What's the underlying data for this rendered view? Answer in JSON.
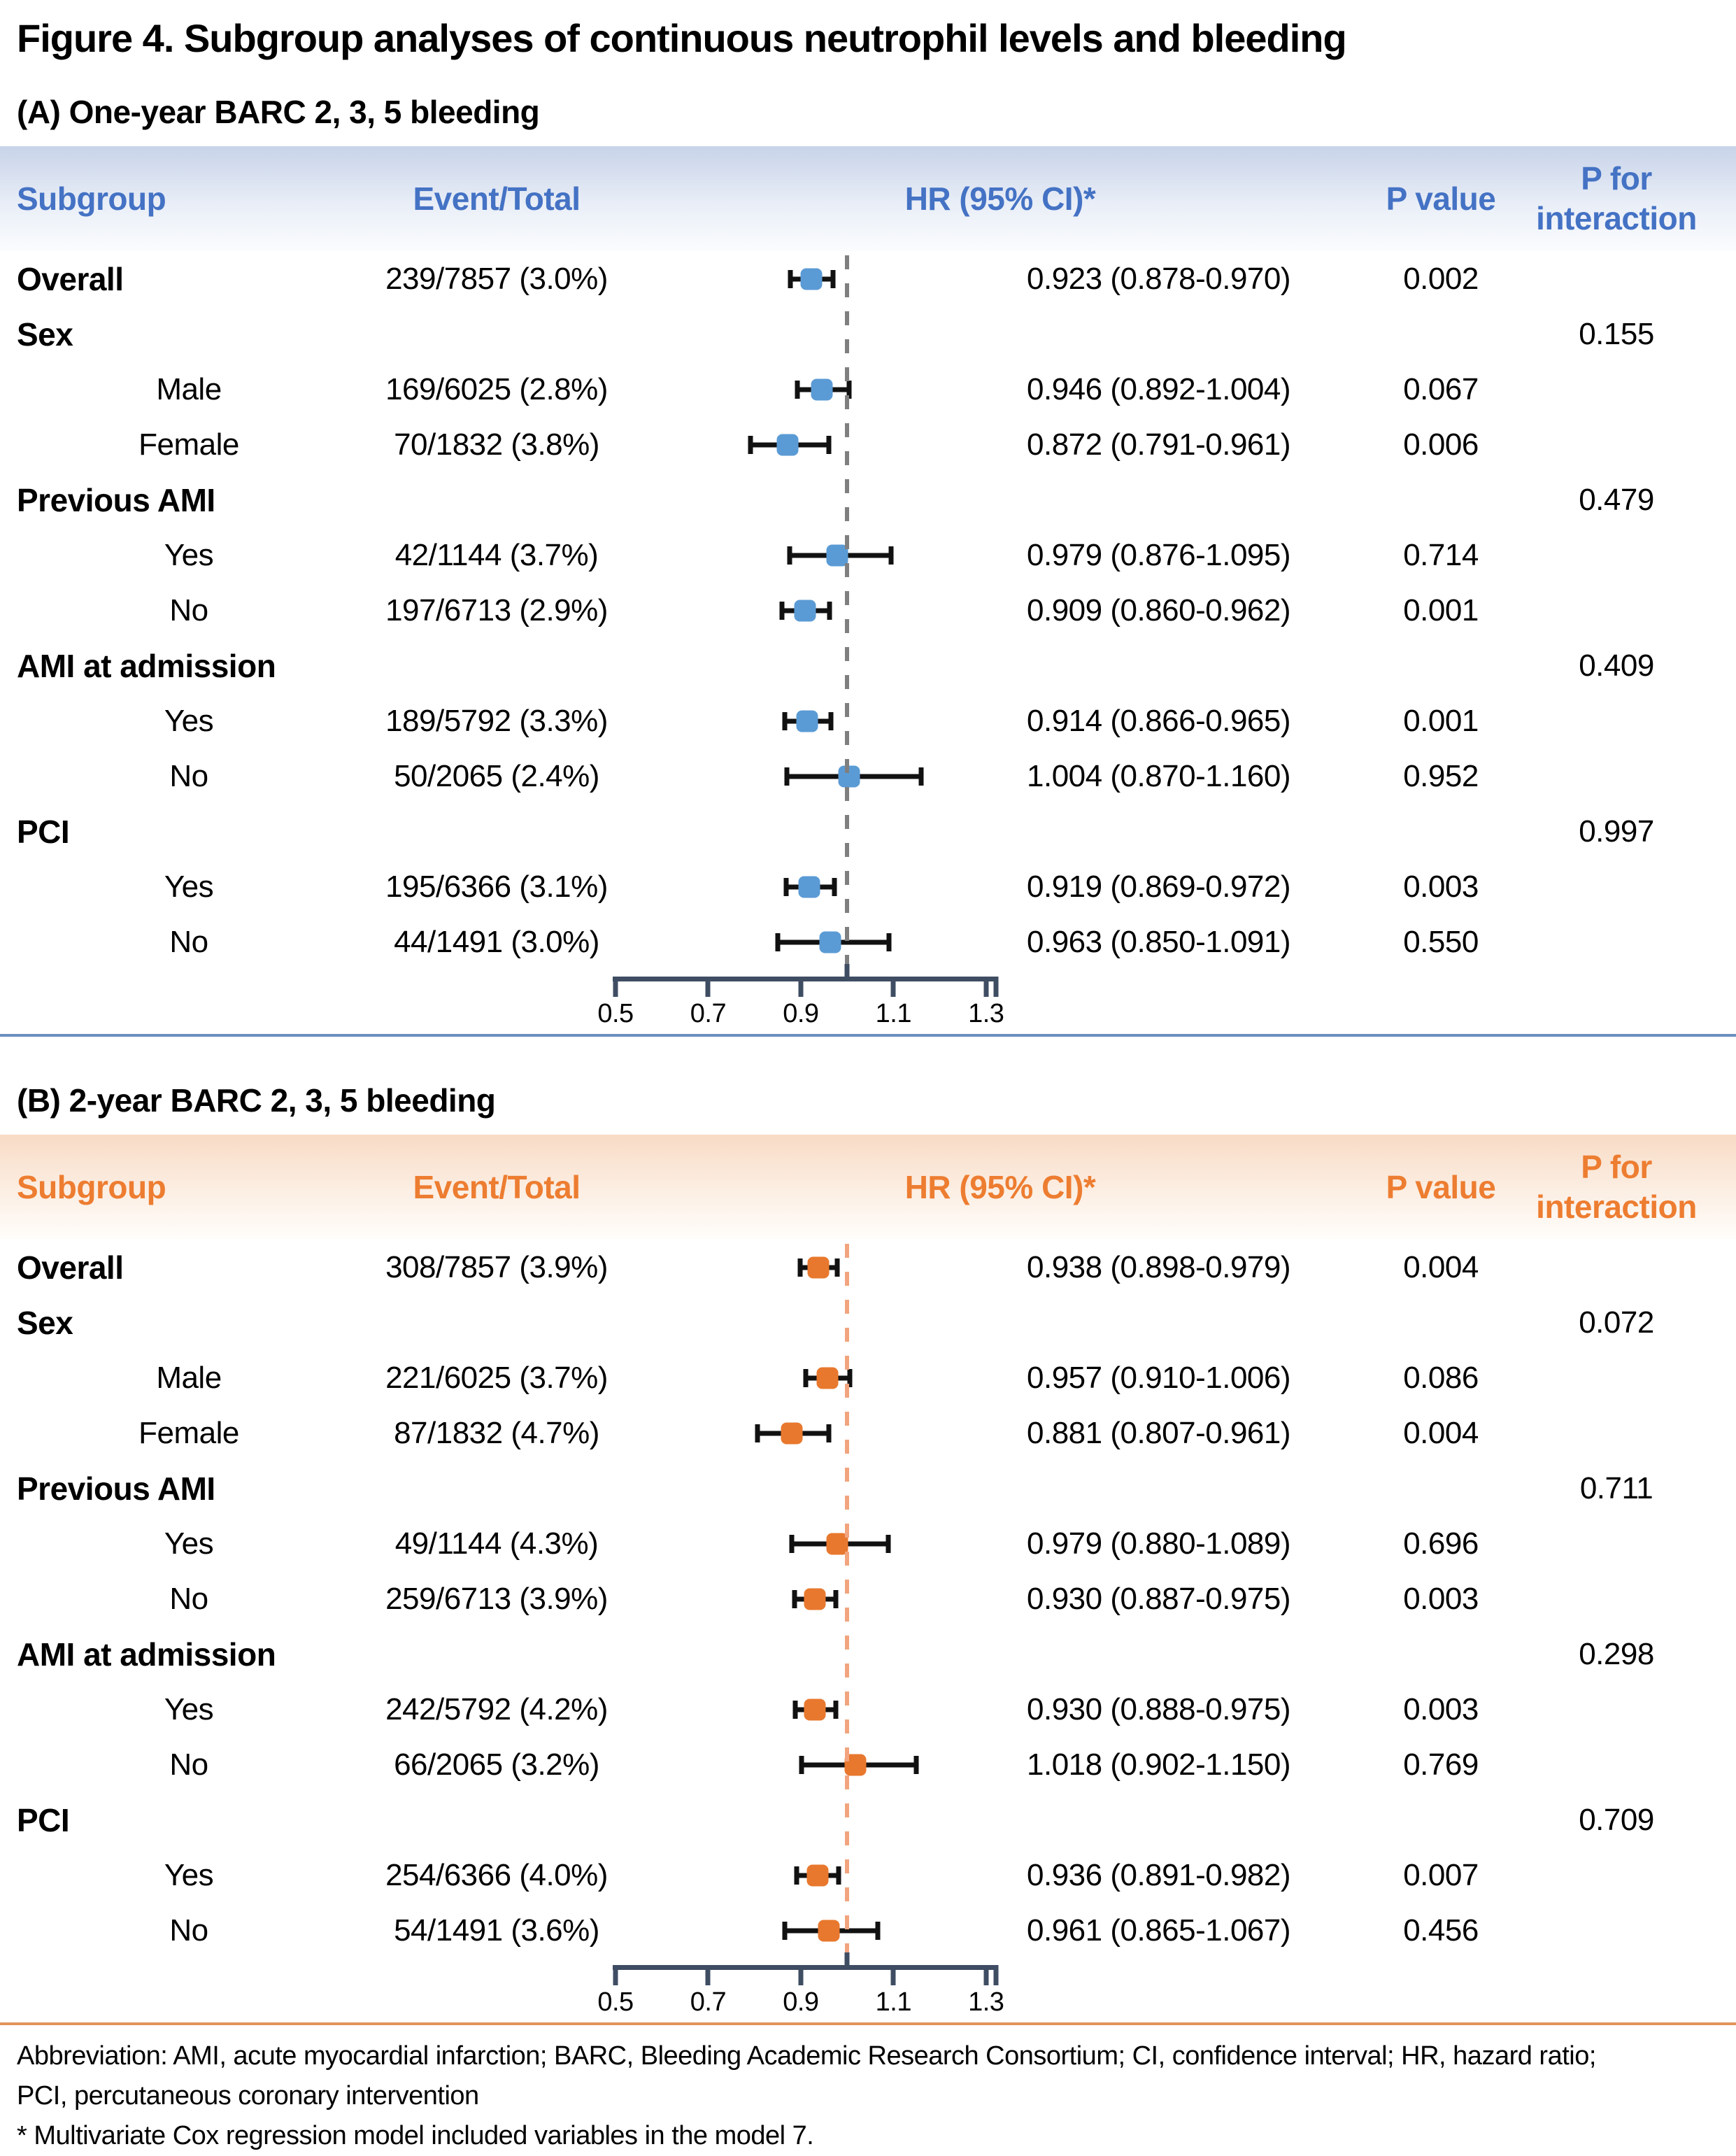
{
  "figure": {
    "title": "Figure 4. Subgroup analyses of continuous neutrophil levels and bleeding",
    "footnotes": [
      "Abbreviation: AMI, acute myocardial infarction; BARC, Bleeding Academic Research Consortium; CI, confidence interval; HR, hazard ratio;",
      "PCI, percutaneous coronary intervention",
      "* Multivariate Cox regression model included variables in the model 7."
    ]
  },
  "columns": {
    "subgroup": "Subgroup",
    "event_total": "Event/Total",
    "hr_ci": "HR (95% CI)*",
    "p_value": "P value",
    "p_interaction_line1": "P for",
    "p_interaction_line2": "interaction"
  },
  "chart_data": [
    {
      "type": "scatter",
      "variant": "forest-plot",
      "title": "(A) One-year BARC 2, 3, 5 bleeding",
      "xlabel": "HR",
      "xlim": [
        0.5,
        1.3
      ],
      "x_ticks": [
        0.5,
        0.7,
        0.9,
        1.1,
        1.3
      ],
      "reference_line": 1.0,
      "accent_color": "#4472C4",
      "marker_color": "#5B9BD5",
      "reference_color": "#7F7F7F",
      "divider_color": "#6B8EBF",
      "rows": [
        {
          "kind": "data",
          "bold": true,
          "indent": false,
          "label": "Overall",
          "event_total": "239/7857 (3.0%)",
          "hr": 0.923,
          "ci_low": 0.878,
          "ci_high": 0.97,
          "hr_ci_text": "0.923 (0.878-0.970)",
          "p_value": "0.002",
          "p_interaction": ""
        },
        {
          "kind": "group",
          "label": "Sex",
          "p_interaction": "0.155"
        },
        {
          "kind": "data",
          "bold": false,
          "indent": true,
          "label": "Male",
          "event_total": "169/6025 (2.8%)",
          "hr": 0.946,
          "ci_low": 0.892,
          "ci_high": 1.004,
          "hr_ci_text": "0.946 (0.892-1.004)",
          "p_value": "0.067",
          "p_interaction": ""
        },
        {
          "kind": "data",
          "bold": false,
          "indent": true,
          "label": "Female",
          "event_total": "70/1832 (3.8%)",
          "hr": 0.872,
          "ci_low": 0.791,
          "ci_high": 0.961,
          "hr_ci_text": "0.872 (0.791-0.961)",
          "p_value": "0.006",
          "p_interaction": ""
        },
        {
          "kind": "group",
          "label": "Previous AMI",
          "p_interaction": "0.479"
        },
        {
          "kind": "data",
          "bold": false,
          "indent": true,
          "label": "Yes",
          "event_total": "42/1144 (3.7%)",
          "hr": 0.979,
          "ci_low": 0.876,
          "ci_high": 1.095,
          "hr_ci_text": "0.979 (0.876-1.095)",
          "p_value": "0.714",
          "p_interaction": ""
        },
        {
          "kind": "data",
          "bold": false,
          "indent": true,
          "label": "No",
          "event_total": "197/6713 (2.9%)",
          "hr": 0.909,
          "ci_low": 0.86,
          "ci_high": 0.962,
          "hr_ci_text": "0.909 (0.860-0.962)",
          "p_value": "0.001",
          "p_interaction": ""
        },
        {
          "kind": "group",
          "label": "AMI at admission",
          "p_interaction": "0.409"
        },
        {
          "kind": "data",
          "bold": false,
          "indent": true,
          "label": "Yes",
          "event_total": "189/5792 (3.3%)",
          "hr": 0.914,
          "ci_low": 0.866,
          "ci_high": 0.965,
          "hr_ci_text": "0.914 (0.866-0.965)",
          "p_value": "0.001",
          "p_interaction": ""
        },
        {
          "kind": "data",
          "bold": false,
          "indent": true,
          "label": "No",
          "event_total": "50/2065 (2.4%)",
          "hr": 1.004,
          "ci_low": 0.87,
          "ci_high": 1.16,
          "hr_ci_text": "1.004 (0.870-1.160)",
          "p_value": "0.952",
          "p_interaction": ""
        },
        {
          "kind": "group",
          "label": "PCI",
          "p_interaction": "0.997"
        },
        {
          "kind": "data",
          "bold": false,
          "indent": true,
          "label": "Yes",
          "event_total": "195/6366 (3.1%)",
          "hr": 0.919,
          "ci_low": 0.869,
          "ci_high": 0.972,
          "hr_ci_text": "0.919 (0.869-0.972)",
          "p_value": "0.003",
          "p_interaction": ""
        },
        {
          "kind": "data",
          "bold": false,
          "indent": true,
          "label": "No",
          "event_total": "44/1491 (3.0%)",
          "hr": 0.963,
          "ci_low": 0.85,
          "ci_high": 1.091,
          "hr_ci_text": "0.963 (0.850-1.091)",
          "p_value": "0.550",
          "p_interaction": ""
        }
      ]
    },
    {
      "type": "scatter",
      "variant": "forest-plot",
      "title": "(B) 2-year BARC 2, 3, 5 bleeding",
      "xlabel": "HR",
      "xlim": [
        0.5,
        1.3
      ],
      "x_ticks": [
        0.5,
        0.7,
        0.9,
        1.1,
        1.3
      ],
      "reference_line": 1.0,
      "accent_color": "#ED7D31",
      "marker_color": "#E8782E",
      "reference_color": "#F2A47E",
      "divider_color": "#E2955D",
      "rows": [
        {
          "kind": "data",
          "bold": true,
          "indent": false,
          "label": "Overall",
          "event_total": "308/7857 (3.9%)",
          "hr": 0.938,
          "ci_low": 0.898,
          "ci_high": 0.979,
          "hr_ci_text": "0.938 (0.898-0.979)",
          "p_value": "0.004",
          "p_interaction": ""
        },
        {
          "kind": "group",
          "label": "Sex",
          "p_interaction": "0.072"
        },
        {
          "kind": "data",
          "bold": false,
          "indent": true,
          "label": "Male",
          "event_total": "221/6025 (3.7%)",
          "hr": 0.957,
          "ci_low": 0.91,
          "ci_high": 1.006,
          "hr_ci_text": "0.957 (0.910-1.006)",
          "p_value": "0.086",
          "p_interaction": ""
        },
        {
          "kind": "data",
          "bold": false,
          "indent": true,
          "label": "Female",
          "event_total": "87/1832 (4.7%)",
          "hr": 0.881,
          "ci_low": 0.807,
          "ci_high": 0.961,
          "hr_ci_text": "0.881 (0.807-0.961)",
          "p_value": "0.004",
          "p_interaction": ""
        },
        {
          "kind": "group",
          "label": "Previous AMI",
          "p_interaction": "0.711"
        },
        {
          "kind": "data",
          "bold": false,
          "indent": true,
          "label": "Yes",
          "event_total": "49/1144 (4.3%)",
          "hr": 0.979,
          "ci_low": 0.88,
          "ci_high": 1.089,
          "hr_ci_text": "0.979 (0.880-1.089)",
          "p_value": "0.696",
          "p_interaction": ""
        },
        {
          "kind": "data",
          "bold": false,
          "indent": true,
          "label": "No",
          "event_total": "259/6713 (3.9%)",
          "hr": 0.93,
          "ci_low": 0.887,
          "ci_high": 0.975,
          "hr_ci_text": "0.930 (0.887-0.975)",
          "p_value": "0.003",
          "p_interaction": ""
        },
        {
          "kind": "group",
          "label": "AMI at admission",
          "p_interaction": "0.298"
        },
        {
          "kind": "data",
          "bold": false,
          "indent": true,
          "label": "Yes",
          "event_total": "242/5792 (4.2%)",
          "hr": 0.93,
          "ci_low": 0.888,
          "ci_high": 0.975,
          "hr_ci_text": "0.930 (0.888-0.975)",
          "p_value": "0.003",
          "p_interaction": ""
        },
        {
          "kind": "data",
          "bold": false,
          "indent": true,
          "label": "No",
          "event_total": "66/2065 (3.2%)",
          "hr": 1.018,
          "ci_low": 0.902,
          "ci_high": 1.15,
          "hr_ci_text": "1.018 (0.902-1.150)",
          "p_value": "0.769",
          "p_interaction": ""
        },
        {
          "kind": "group",
          "label": "PCI",
          "p_interaction": "0.709"
        },
        {
          "kind": "data",
          "bold": false,
          "indent": true,
          "label": "Yes",
          "event_total": "254/6366 (4.0%)",
          "hr": 0.936,
          "ci_low": 0.891,
          "ci_high": 0.982,
          "hr_ci_text": "0.936 (0.891-0.982)",
          "p_value": "0.007",
          "p_interaction": ""
        },
        {
          "kind": "data",
          "bold": false,
          "indent": true,
          "label": "No",
          "event_total": "54/1491 (3.6%)",
          "hr": 0.961,
          "ci_low": 0.865,
          "ci_high": 1.067,
          "hr_ci_text": "0.961 (0.865-1.067)",
          "p_value": "0.456",
          "p_interaction": ""
        }
      ]
    }
  ]
}
